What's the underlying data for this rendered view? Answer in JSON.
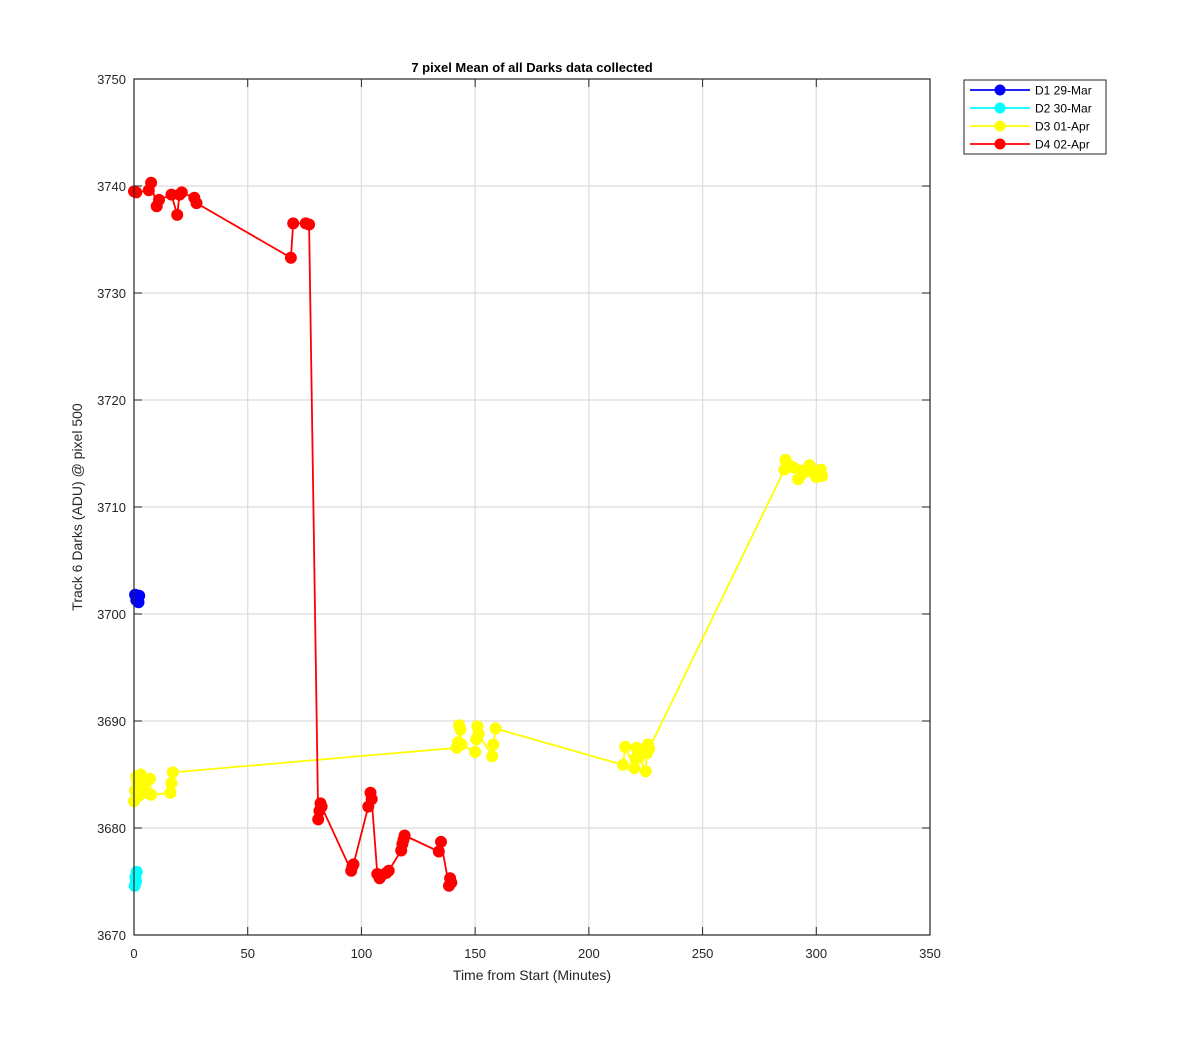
{
  "chart_data": {
    "type": "line",
    "title": "7 pixel Mean of all Darks data collected",
    "xlabel": "Time from Start (Minutes)",
    "ylabel": "Track 6 Darks (ADU) @ pixel 500",
    "xlim": [
      0,
      350
    ],
    "ylim": [
      3670,
      3750
    ],
    "xticks": [
      0,
      50,
      100,
      150,
      200,
      250,
      300,
      350
    ],
    "yticks": [
      3670,
      3680,
      3690,
      3700,
      3710,
      3720,
      3730,
      3740,
      3750
    ],
    "grid": true,
    "legend_position": "outside top-right",
    "series": [
      {
        "name": "D1 29-Mar",
        "color": "#0000ff",
        "x": [
          0.5,
          1.0,
          1.5,
          2.0,
          2.3
        ],
        "y": [
          3701.8,
          3701.3,
          3701.5,
          3701.1,
          3701.7
        ]
      },
      {
        "name": "D2 30-Mar",
        "color": "#00ffff",
        "x": [
          0.3,
          0.6,
          0.9,
          1.2
        ],
        "y": [
          3674.6,
          3675.4,
          3675.0,
          3675.9
        ]
      },
      {
        "name": "D3 01-Apr",
        "color": "#ffff00",
        "x": [
          0,
          0.5,
          1,
          1.5,
          2,
          3,
          3.5,
          5.5,
          7,
          7.5,
          16,
          16.5,
          17,
          142,
          142.5,
          143,
          143.5,
          144,
          150,
          150.5,
          151,
          151.5,
          157.5,
          158,
          159,
          215,
          216,
          220,
          220.5,
          221,
          221.5,
          222,
          225,
          225.5,
          226,
          226.5,
          286,
          286.5,
          288,
          290,
          292,
          293,
          294,
          297,
          298,
          300,
          302,
          302.5
        ],
        "y": [
          3682.5,
          3683.5,
          3684.8,
          3684.3,
          3683.0,
          3685.0,
          3684.0,
          3683.3,
          3684.6,
          3683.1,
          3683.3,
          3684.2,
          3685.2,
          3687.5,
          3688.0,
          3689.6,
          3689.2,
          3687.8,
          3687.1,
          3688.3,
          3689.5,
          3688.8,
          3686.7,
          3687.8,
          3689.3,
          3685.9,
          3687.6,
          3685.6,
          3686.5,
          3687.5,
          3687.3,
          3686.6,
          3685.3,
          3687.0,
          3687.8,
          3687.4,
          3713.5,
          3714.4,
          3713.9,
          3713.7,
          3712.6,
          3713.4,
          3713.1,
          3713.9,
          3713.3,
          3712.8,
          3713.5,
          3712.9
        ]
      },
      {
        "name": "D4 02-Apr",
        "color": "#ff0000",
        "x": [
          0,
          1,
          6.5,
          7.5,
          10,
          11,
          16.5,
          19,
          20,
          21,
          26.5,
          27.5,
          69,
          70,
          75.5,
          77,
          81,
          81.5,
          82,
          82.5,
          95.5,
          96,
          96.5,
          103,
          104,
          104.5,
          107,
          108,
          109,
          111,
          112,
          117.5,
          118,
          118.5,
          119,
          134,
          135,
          138.5,
          139,
          139.5
        ],
        "y": [
          3739.5,
          3739.4,
          3739.6,
          3740.3,
          3738.1,
          3738.7,
          3739.2,
          3737.3,
          3739.2,
          3739.4,
          3738.9,
          3738.4,
          3733.3,
          3736.5,
          3736.5,
          3736.4,
          3680.8,
          3681.6,
          3682.3,
          3682.0,
          3676.0,
          3676.4,
          3676.6,
          3682.0,
          3683.3,
          3682.7,
          3675.7,
          3675.3,
          3675.6,
          3675.8,
          3676.0,
          3677.9,
          3678.5,
          3678.9,
          3679.3,
          3677.8,
          3678.7,
          3674.6,
          3675.3,
          3674.9
        ]
      }
    ]
  }
}
